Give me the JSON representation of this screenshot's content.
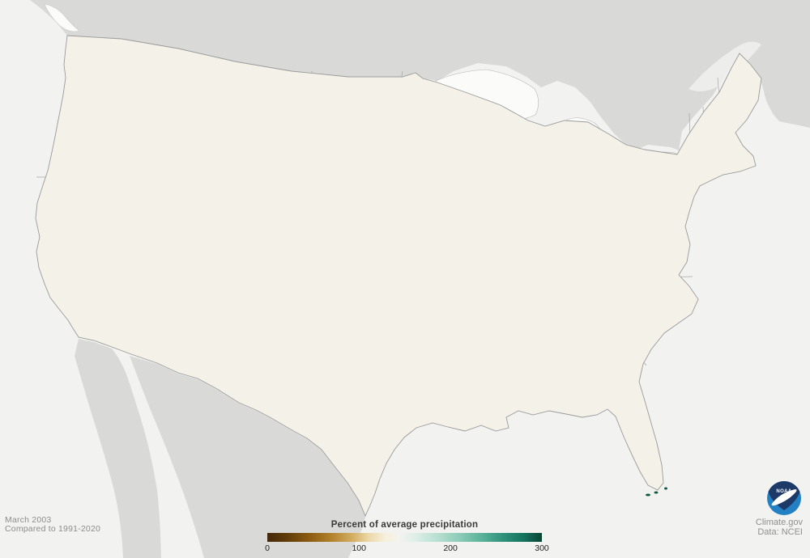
{
  "date_label": {
    "period": "March 2003",
    "baseline": "Compared to 1991-2020"
  },
  "legend": {
    "title": "Percent of average precipitation",
    "min": 0,
    "max": 300,
    "ticks": [
      "0",
      "100",
      "200",
      "300"
    ],
    "gradient_stops": [
      [
        "0%",
        "#45290a"
      ],
      [
        "7%",
        "#5f3c08"
      ],
      [
        "15%",
        "#8a5a10"
      ],
      [
        "23%",
        "#b07f2a"
      ],
      [
        "31%",
        "#d4ae62"
      ],
      [
        "37%",
        "#ecd8a8"
      ],
      [
        "43%",
        "#f7efdc"
      ],
      [
        "48%",
        "#f4f3ee"
      ],
      [
        "54%",
        "#ddeee7"
      ],
      [
        "62%",
        "#b8dfd2"
      ],
      [
        "70%",
        "#8ccbb7"
      ],
      [
        "78%",
        "#5bb29a"
      ],
      [
        "86%",
        "#2f9179"
      ],
      [
        "93%",
        "#147660"
      ],
      [
        "100%",
        "#0a4635"
      ]
    ]
  },
  "attribution": {
    "site": "Climate.gov",
    "data_source": "Data: NCEI",
    "logo_text": "NOAA"
  },
  "map": {
    "region": "Contiguous United States",
    "ocean_color": "#f2f2f1",
    "neighbor_color": "#d9d9d7",
    "lake_color": "#fbfbfa",
    "base_fill": "#f4f1e8",
    "border_color": "#9a9a9a",
    "palette": {
      "darkestTeal": "#083e30",
      "darkTeal": "#0d5743",
      "deepTeal": "#1d8169",
      "teal": "#4fae97",
      "lightTeal": "#96d2c0",
      "paleTeal": "#cfe9e0",
      "creamWhite": "#f7f6f1",
      "darkestBrown": "#462c06",
      "darkBrown": "#6c480c",
      "brown": "#9a671a",
      "tan": "#c49b49",
      "paleTan": "#e4d09d"
    },
    "blobs": [
      [
        100,
        88,
        26,
        22,
        "teal",
        0.85
      ],
      [
        93,
        150,
        20,
        26,
        "teal",
        0.7
      ],
      [
        86,
        212,
        16,
        24,
        "lightTeal",
        0.65
      ],
      [
        128,
        75,
        14,
        12,
        "lightTeal",
        0.75
      ],
      [
        120,
        150,
        12,
        14,
        "paleTeal",
        0.6
      ],
      [
        140,
        182,
        12,
        12,
        "paleTeal",
        0.55
      ],
      [
        160,
        95,
        22,
        26,
        "brown",
        0.85
      ],
      [
        150,
        62,
        13,
        11,
        "tan",
        0.7
      ],
      [
        183,
        140,
        18,
        16,
        "tan",
        0.85
      ],
      [
        207,
        172,
        22,
        18,
        "brown",
        0.75
      ],
      [
        162,
        192,
        15,
        12,
        "paleTan",
        0.7
      ],
      [
        236,
        208,
        18,
        13,
        "tan",
        0.7
      ],
      [
        252,
        95,
        26,
        22,
        "teal",
        0.8
      ],
      [
        240,
        118,
        12,
        10,
        "darkTeal",
        0.75
      ],
      [
        288,
        128,
        22,
        18,
        "lightTeal",
        0.8
      ],
      [
        318,
        88,
        18,
        14,
        "teal",
        0.65
      ],
      [
        345,
        112,
        16,
        14,
        "deepTeal",
        0.65
      ],
      [
        383,
        128,
        34,
        40,
        "darkestTeal",
        0.95
      ],
      [
        368,
        90,
        16,
        12,
        "darkTeal",
        0.75
      ],
      [
        404,
        170,
        16,
        16,
        "darkTeal",
        0.6
      ],
      [
        340,
        168,
        20,
        16,
        "teal",
        0.7
      ],
      [
        300,
        165,
        16,
        12,
        "lightTeal",
        0.65
      ],
      [
        224,
        142,
        14,
        12,
        "paleTeal",
        0.55
      ],
      [
        445,
        112,
        24,
        18,
        "brown",
        0.9
      ],
      [
        470,
        160,
        18,
        14,
        "darkBrown",
        0.75
      ],
      [
        512,
        106,
        20,
        16,
        "brown",
        0.85
      ],
      [
        548,
        148,
        22,
        18,
        "brown",
        0.8
      ],
      [
        532,
        178,
        16,
        13,
        "darkBrown",
        0.75
      ],
      [
        522,
        195,
        14,
        11,
        "tan",
        0.7
      ],
      [
        562,
        212,
        15,
        11,
        "tan",
        0.65
      ],
      [
        563,
        118,
        24,
        20,
        "darkBrown",
        0.85
      ],
      [
        602,
        140,
        18,
        14,
        "brown",
        0.75
      ],
      [
        628,
        112,
        14,
        10,
        "tan",
        0.65
      ],
      [
        432,
        155,
        10,
        12,
        "teal",
        0.6
      ],
      [
        440,
        210,
        16,
        12,
        "paleTeal",
        0.65
      ],
      [
        410,
        240,
        14,
        10,
        "lightTeal",
        0.55
      ],
      [
        488,
        222,
        16,
        13,
        "paleTeal",
        0.7
      ],
      [
        452,
        332,
        20,
        16,
        "paleTeal",
        0.8
      ],
      [
        472,
        362,
        16,
        12,
        "lightTeal",
        0.65
      ],
      [
        478,
        255,
        16,
        12,
        "brown",
        0.6
      ],
      [
        505,
        270,
        18,
        14,
        "brown",
        0.75
      ],
      [
        532,
        300,
        14,
        12,
        "paleTan",
        0.65
      ],
      [
        310,
        205,
        22,
        18,
        "lightTeal",
        0.75
      ],
      [
        348,
        238,
        20,
        18,
        "teal",
        0.75
      ],
      [
        320,
        258,
        14,
        12,
        "lightTeal",
        0.65
      ],
      [
        360,
        295,
        20,
        26,
        "darkTeal",
        0.85
      ],
      [
        347,
        320,
        13,
        14,
        "darkestTeal",
        0.85
      ],
      [
        388,
        262,
        16,
        14,
        "teal",
        0.65
      ],
      [
        395,
        330,
        18,
        16,
        "deepTeal",
        0.75
      ],
      [
        374,
        356,
        14,
        12,
        "teal",
        0.65
      ],
      [
        420,
        302,
        18,
        14,
        "lightTeal",
        0.6
      ],
      [
        300,
        230,
        12,
        10,
        "paleTan",
        0.55
      ],
      [
        616,
        162,
        12,
        10,
        "teal",
        0.6
      ],
      [
        643,
        172,
        12,
        10,
        "lightTeal",
        0.6
      ],
      [
        594,
        188,
        14,
        10,
        "tan",
        0.65
      ],
      [
        650,
        196,
        10,
        9,
        "paleTeal",
        0.55
      ],
      [
        625,
        220,
        12,
        10,
        "paleTan",
        0.55
      ],
      [
        548,
        265,
        24,
        20,
        "darkBrown",
        0.85
      ],
      [
        592,
        292,
        20,
        16,
        "brown",
        0.85
      ],
      [
        572,
        332,
        18,
        16,
        "darkBrown",
        0.78
      ],
      [
        612,
        372,
        20,
        16,
        "brown",
        0.85
      ],
      [
        634,
        322,
        18,
        14,
        "brown",
        0.75
      ],
      [
        604,
        250,
        14,
        10,
        "tan",
        0.65
      ],
      [
        654,
        278,
        16,
        12,
        "tan",
        0.75
      ],
      [
        648,
        252,
        10,
        8,
        "paleTeal",
        0.45
      ],
      [
        692,
        322,
        26,
        20,
        "darkBrown",
        0.88
      ],
      [
        732,
        312,
        20,
        16,
        "darkBrown",
        0.8
      ],
      [
        758,
        292,
        18,
        14,
        "brown",
        0.85
      ],
      [
        702,
        356,
        18,
        14,
        "darkBrown",
        0.8
      ],
      [
        662,
        360,
        16,
        12,
        "brown",
        0.75
      ],
      [
        722,
        272,
        16,
        12,
        "brown",
        0.7
      ],
      [
        682,
        252,
        14,
        10,
        "tan",
        0.65
      ],
      [
        752,
        248,
        14,
        10,
        "tan",
        0.65
      ],
      [
        790,
        258,
        18,
        14,
        "brown",
        0.75
      ],
      [
        778,
        302,
        16,
        14,
        "darkBrown",
        0.8
      ],
      [
        795,
        332,
        14,
        12,
        "brown",
        0.7
      ],
      [
        712,
        382,
        14,
        10,
        "brown",
        0.65
      ],
      [
        745,
        368,
        14,
        10,
        "tan",
        0.65
      ],
      [
        822,
        238,
        16,
        12,
        "tan",
        0.75
      ],
      [
        843,
        218,
        13,
        10,
        "tan",
        0.65
      ],
      [
        836,
        168,
        12,
        10,
        "lightTeal",
        0.55
      ],
      [
        860,
        198,
        10,
        8,
        "paleTeal",
        0.55
      ],
      [
        895,
        128,
        16,
        12,
        "paleTan",
        0.7
      ],
      [
        922,
        122,
        12,
        14,
        "lightTeal",
        0.65
      ],
      [
        905,
        182,
        10,
        8,
        "paleTeal",
        0.55
      ],
      [
        878,
        148,
        12,
        10,
        "paleTan",
        0.55
      ],
      [
        871,
        226,
        10,
        6,
        "tan",
        0.55
      ],
      [
        845,
        298,
        10,
        10,
        "paleTeal",
        0.55
      ],
      [
        822,
        352,
        20,
        14,
        "lightTeal",
        0.75
      ],
      [
        800,
        382,
        22,
        16,
        "teal",
        0.8
      ],
      [
        838,
        372,
        13,
        10,
        "teal",
        0.75
      ],
      [
        762,
        402,
        20,
        16,
        "teal",
        0.75
      ],
      [
        730,
        408,
        16,
        12,
        "lightTeal",
        0.7
      ],
      [
        700,
        392,
        14,
        10,
        "paleTeal",
        0.55
      ],
      [
        768,
        420,
        16,
        14,
        "teal",
        0.75
      ],
      [
        782,
        445,
        16,
        18,
        "deepTeal",
        0.85
      ],
      [
        795,
        465,
        12,
        14,
        "darkTeal",
        0.8
      ],
      [
        755,
        455,
        13,
        12,
        "teal",
        0.7
      ],
      [
        718,
        428,
        13,
        10,
        "lightTeal",
        0.65
      ],
      [
        706,
        468,
        12,
        10,
        "lightTeal",
        0.6
      ],
      [
        805,
        415,
        12,
        10,
        "darkTeal",
        0.65
      ],
      [
        762,
        494,
        16,
        10,
        "teal",
        0.75
      ],
      [
        730,
        492,
        12,
        8,
        "lightTeal",
        0.65
      ],
      [
        700,
        494,
        13,
        8,
        "lightTeal",
        0.6
      ],
      [
        786,
        488,
        12,
        9,
        "deepTeal",
        0.7
      ],
      [
        782,
        508,
        12,
        12,
        "darkTeal",
        0.75
      ],
      [
        792,
        535,
        10,
        12,
        "deepTeal",
        0.75
      ],
      [
        788,
        560,
        9,
        10,
        "teal",
        0.65
      ],
      [
        806,
        585,
        11,
        10,
        "darkTeal",
        0.85
      ],
      [
        772,
        558,
        9,
        8,
        "creamWhite",
        0.85
      ],
      [
        803,
        533,
        8,
        8,
        "creamWhite",
        0.7
      ],
      [
        810,
        560,
        8,
        9,
        "lightTeal",
        0.55
      ],
      [
        628,
        432,
        26,
        20,
        "darkBrown",
        0.85
      ],
      [
        656,
        398,
        20,
        16,
        "darkBrown",
        0.78
      ],
      [
        592,
        412,
        20,
        16,
        "brown",
        0.85
      ],
      [
        562,
        442,
        18,
        14,
        "brown",
        0.8
      ],
      [
        548,
        392,
        16,
        12,
        "brown",
        0.75
      ],
      [
        602,
        470,
        16,
        12,
        "tan",
        0.75
      ],
      [
        572,
        492,
        14,
        10,
        "brown",
        0.7
      ],
      [
        618,
        502,
        10,
        8,
        "paleTeal",
        0.5
      ],
      [
        643,
        472,
        12,
        9,
        "paleTan",
        0.6
      ],
      [
        668,
        452,
        12,
        9,
        "tan",
        0.65
      ],
      [
        472,
        452,
        30,
        24,
        "darkBrown",
        0.88
      ],
      [
        512,
        432,
        22,
        16,
        "brown",
        0.85
      ],
      [
        442,
        482,
        20,
        16,
        "brown",
        0.8
      ],
      [
        502,
        482,
        18,
        14,
        "brown",
        0.75
      ],
      [
        532,
        462,
        16,
        12,
        "brown",
        0.75
      ],
      [
        472,
        422,
        16,
        12,
        "darkBrown",
        0.75
      ],
      [
        422,
        432,
        18,
        14,
        "brown",
        0.75
      ],
      [
        382,
        442,
        16,
        12,
        "tan",
        0.75
      ],
      [
        358,
        472,
        14,
        10,
        "brown",
        0.65
      ],
      [
        398,
        492,
        14,
        10,
        "tan",
        0.7
      ],
      [
        452,
        522,
        16,
        12,
        "tan",
        0.75
      ],
      [
        477,
        548,
        13,
        10,
        "paleTan",
        0.7
      ],
      [
        467,
        588,
        11,
        9,
        "paleTan",
        0.65
      ],
      [
        483,
        567,
        7,
        6,
        "paleTeal",
        0.55
      ],
      [
        502,
        527,
        9,
        7,
        "paleTeal",
        0.55
      ],
      [
        462,
        402,
        14,
        11,
        "paleTeal",
        0.7
      ],
      [
        502,
        392,
        16,
        11,
        "tan",
        0.7
      ],
      [
        527,
        402,
        13,
        10,
        "brown",
        0.65
      ],
      [
        547,
        362,
        13,
        10,
        "tan",
        0.65
      ],
      [
        432,
        392,
        12,
        9,
        "tan",
        0.55
      ],
      [
        322,
        422,
        18,
        14,
        "brown",
        0.8
      ],
      [
        298,
        425,
        12,
        10,
        "darkBrown",
        0.75
      ],
      [
        342,
        392,
        13,
        10,
        "tan",
        0.65
      ],
      [
        282,
        402,
        12,
        9,
        "paleTan",
        0.55
      ],
      [
        252,
        432,
        10,
        8,
        "lightTeal",
        0.55
      ],
      [
        347,
        487,
        12,
        9,
        "lightTeal",
        0.55
      ],
      [
        302,
        472,
        12,
        9,
        "brown",
        0.65
      ],
      [
        188,
        395,
        17,
        13,
        "teal",
        0.8
      ],
      [
        170,
        406,
        10,
        8,
        "darkTeal",
        0.65
      ],
      [
        216,
        417,
        12,
        9,
        "lightTeal",
        0.65
      ],
      [
        152,
        372,
        14,
        10,
        "lightTeal",
        0.65
      ],
      [
        128,
        372,
        10,
        8,
        "paleTeal",
        0.55
      ],
      [
        202,
        452,
        12,
        8,
        "paleTan",
        0.65
      ],
      [
        232,
        462,
        10,
        7,
        "tan",
        0.55
      ],
      [
        178,
        442,
        10,
        7,
        "tan",
        0.55
      ],
      [
        178,
        242,
        18,
        14,
        "paleTeal",
        0.75
      ],
      [
        208,
        262,
        16,
        12,
        "paleTan",
        0.65
      ],
      [
        162,
        232,
        12,
        9,
        "brown",
        0.55
      ],
      [
        188,
        292,
        18,
        14,
        "brown",
        0.72
      ],
      [
        228,
        322,
        18,
        14,
        "brown",
        0.8
      ],
      [
        258,
        292,
        15,
        12,
        "tan",
        0.7
      ],
      [
        272,
        252,
        13,
        10,
        "paleTeal",
        0.5
      ],
      [
        292,
        312,
        13,
        10,
        "tan",
        0.65
      ],
      [
        302,
        272,
        12,
        9,
        "paleTan",
        0.55
      ],
      [
        248,
        202,
        12,
        9,
        "tan",
        0.55
      ],
      [
        52,
        300,
        10,
        26,
        "darkBrown",
        0.8
      ],
      [
        76,
        332,
        18,
        16,
        "brown",
        0.85
      ],
      [
        106,
        362,
        16,
        12,
        "brown",
        0.75
      ],
      [
        96,
        302,
        14,
        12,
        "brown",
        0.75
      ],
      [
        120,
        322,
        13,
        10,
        "tan",
        0.7
      ],
      [
        60,
        257,
        11,
        10,
        "teal",
        0.7
      ],
      [
        82,
        237,
        11,
        9,
        "lightTeal",
        0.65
      ],
      [
        112,
        262,
        11,
        9,
        "paleTan",
        0.55
      ],
      [
        90,
        390,
        12,
        8,
        "tan",
        0.65
      ],
      [
        50,
        335,
        8,
        10,
        "darkestBrown",
        0.6
      ]
    ]
  }
}
